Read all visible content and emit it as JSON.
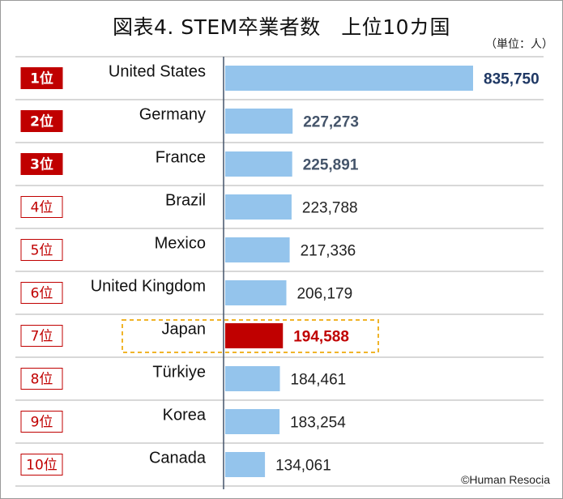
{
  "title": "図表4. STEM卒業者数　上位10カ国",
  "unit_note": "（単位：人）",
  "credit": "©Human Resocia",
  "colors": {
    "bar": "#94c4ec",
    "highlight_bar": "#c00000",
    "rank_top_bg": "#c00000",
    "rank_text": "#c00000",
    "top_value": "#1f3864",
    "mid_value": "#44546a",
    "highlight_outline": "#f0b429"
  },
  "chart_data": {
    "type": "bar",
    "orientation": "horizontal",
    "ranks": [
      "1位",
      "2位",
      "3位",
      "4位",
      "5位",
      "6位",
      "7位",
      "8位",
      "9位",
      "10位"
    ],
    "categories": [
      "United States",
      "Germany",
      "France",
      "Brazil",
      "Mexico",
      "United Kingdom",
      "Japan",
      "Türkiye",
      "Korea",
      "Canada"
    ],
    "values": [
      835750,
      227273,
      225891,
      223788,
      217336,
      206179,
      194588,
      184461,
      183254,
      134061
    ],
    "value_labels": [
      "835,750",
      "227,273",
      "225,891",
      "223,788",
      "217,336",
      "206,179",
      "194,588",
      "184,461",
      "183,254",
      "134,061"
    ],
    "highlight": "Japan",
    "grid": false,
    "legend": "none"
  }
}
